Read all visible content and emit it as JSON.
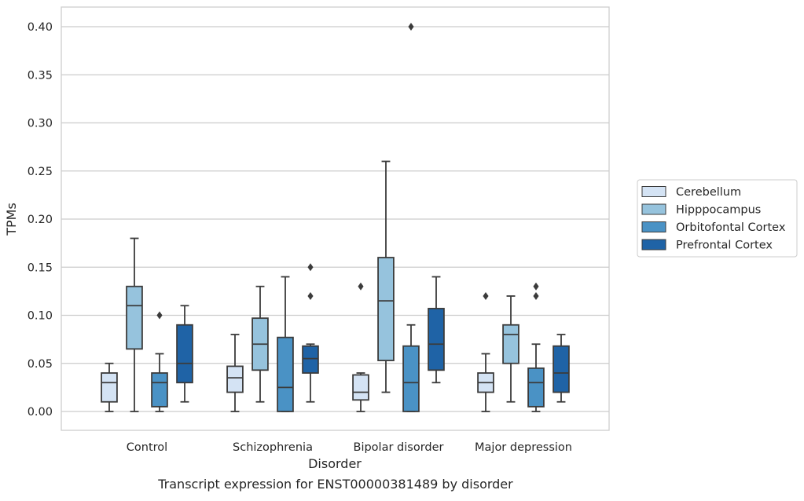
{
  "chart_data": {
    "type": "box",
    "caption": "Transcript expression for ENST00000381489 by disorder",
    "xlabel": "Disorder",
    "ylabel": "TPMs",
    "ylim": [
      -0.019,
      0.42
    ],
    "yticks": [
      0.0,
      0.05,
      0.1,
      0.15,
      0.2,
      0.25,
      0.3,
      0.35,
      0.4
    ],
    "ytick_labels": [
      "0.00",
      "0.05",
      "0.10",
      "0.15",
      "0.20",
      "0.25",
      "0.30",
      "0.35",
      "0.40"
    ],
    "grid": "horizontal",
    "legend_placement": "outside-right",
    "categories": [
      "Control",
      "Schizophrenia",
      "Bipolar disorder",
      "Major depression"
    ],
    "series": [
      {
        "name": "Cerebellum",
        "color": "#d4e3f4",
        "boxes": [
          {
            "whisker_low": 0.0,
            "q1": 0.01,
            "median": 0.03,
            "q3": 0.04,
            "whisker_high": 0.05,
            "outliers": []
          },
          {
            "whisker_low": 0.0,
            "q1": 0.02,
            "median": 0.035,
            "q3": 0.047,
            "whisker_high": 0.08,
            "outliers": []
          },
          {
            "whisker_low": 0.0,
            "q1": 0.012,
            "median": 0.02,
            "q3": 0.038,
            "whisker_high": 0.04,
            "outliers": [
              0.13
            ]
          },
          {
            "whisker_low": 0.0,
            "q1": 0.02,
            "median": 0.03,
            "q3": 0.04,
            "whisker_high": 0.06,
            "outliers": [
              0.12
            ]
          }
        ]
      },
      {
        "name": "Hipppocampus",
        "color": "#96c3dd",
        "boxes": [
          {
            "whisker_low": 0.0,
            "q1": 0.065,
            "median": 0.11,
            "q3": 0.13,
            "whisker_high": 0.18,
            "outliers": []
          },
          {
            "whisker_low": 0.01,
            "q1": 0.043,
            "median": 0.07,
            "q3": 0.097,
            "whisker_high": 0.13,
            "outliers": []
          },
          {
            "whisker_low": 0.02,
            "q1": 0.053,
            "median": 0.115,
            "q3": 0.16,
            "whisker_high": 0.26,
            "outliers": []
          },
          {
            "whisker_low": 0.01,
            "q1": 0.05,
            "median": 0.08,
            "q3": 0.09,
            "whisker_high": 0.12,
            "outliers": []
          }
        ]
      },
      {
        "name": "Orbitofontal Cortex",
        "color": "#4a92c5",
        "boxes": [
          {
            "whisker_low": 0.0,
            "q1": 0.005,
            "median": 0.03,
            "q3": 0.04,
            "whisker_high": 0.06,
            "outliers": [
              0.1
            ]
          },
          {
            "whisker_low": 0.0,
            "q1": 0.0,
            "median": 0.025,
            "q3": 0.077,
            "whisker_high": 0.14,
            "outliers": []
          },
          {
            "whisker_low": 0.0,
            "q1": 0.0,
            "median": 0.03,
            "q3": 0.068,
            "whisker_high": 0.09,
            "outliers": [
              0.4
            ]
          },
          {
            "whisker_low": 0.0,
            "q1": 0.005,
            "median": 0.03,
            "q3": 0.045,
            "whisker_high": 0.07,
            "outliers": [
              0.12,
              0.13
            ]
          }
        ]
      },
      {
        "name": "Prefrontal Cortex",
        "color": "#1f63a6",
        "boxes": [
          {
            "whisker_low": 0.01,
            "q1": 0.03,
            "median": 0.05,
            "q3": 0.09,
            "whisker_high": 0.11,
            "outliers": []
          },
          {
            "whisker_low": 0.01,
            "q1": 0.04,
            "median": 0.055,
            "q3": 0.068,
            "whisker_high": 0.07,
            "outliers": [
              0.12,
              0.15
            ]
          },
          {
            "whisker_low": 0.03,
            "q1": 0.043,
            "median": 0.07,
            "q3": 0.107,
            "whisker_high": 0.14,
            "outliers": []
          },
          {
            "whisker_low": 0.01,
            "q1": 0.02,
            "median": 0.04,
            "q3": 0.068,
            "whisker_high": 0.08,
            "outliers": []
          }
        ]
      }
    ]
  }
}
